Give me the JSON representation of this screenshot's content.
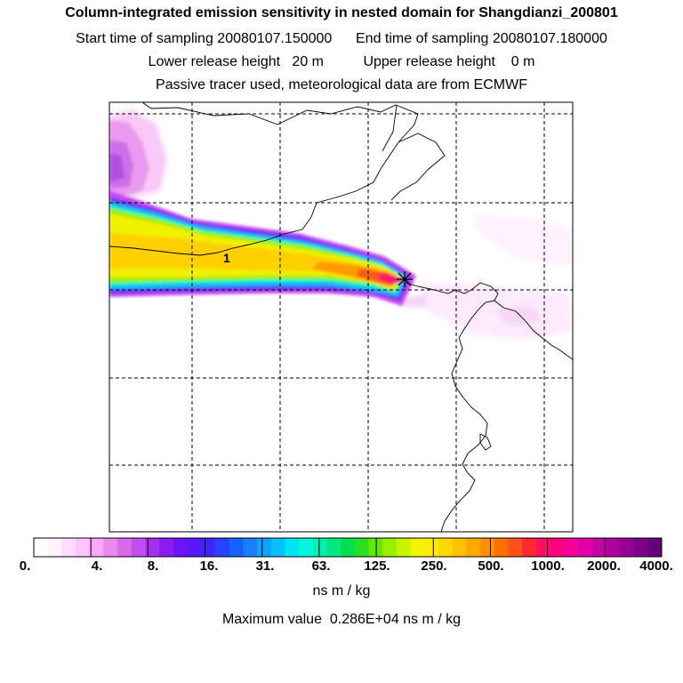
{
  "header": {
    "title": "Column-integrated emission sensitivity in nested domain for Shangdianzi_200801",
    "start_label": "Start time of sampling 20080107.150000",
    "end_label": "End time of sampling 20080107.180000",
    "lower_label": "Lower release height   20 m",
    "upper_label": "Upper release height    0 m",
    "note": "Passive tracer used, meteorological data are from ECMWF"
  },
  "map": {
    "contour_label": "1",
    "station_marker": "x-star"
  },
  "colorbar": {
    "tick_labels": [
      "0.",
      "4.",
      "8.",
      "16.",
      "31.",
      "63.",
      "125.",
      "250.",
      "500.",
      "1000.",
      "2000.",
      "4000."
    ],
    "colors": [
      "#ffffff",
      "#fff2fe",
      "#ffdcfd",
      "#ffc4fb",
      "#f7a8f7",
      "#ea8af0",
      "#d86cec",
      "#c24cf0",
      "#a82ef0",
      "#8a1cf2",
      "#6e14f4",
      "#5818fa",
      "#3f24fc",
      "#2840ff",
      "#1860ff",
      "#1880ff",
      "#10a0ff",
      "#08c0ff",
      "#00e4f4",
      "#00f8dc",
      "#00f0b0",
      "#00e880",
      "#00e050",
      "#28e028",
      "#60e800",
      "#98f000",
      "#c8f400",
      "#f0f400",
      "#ffec00",
      "#ffd800",
      "#ffc000",
      "#ffa800",
      "#ff9000",
      "#ff7000",
      "#ff5018",
      "#ff2a30",
      "#ff1060",
      "#ff0080",
      "#f4009a",
      "#e000a8",
      "#c800a8",
      "#b000a0",
      "#960094",
      "#7c0086",
      "#640078"
    ],
    "units": "ns m / kg",
    "max_value_text": "Maximum value  0.286E+04 ns m / kg"
  }
}
